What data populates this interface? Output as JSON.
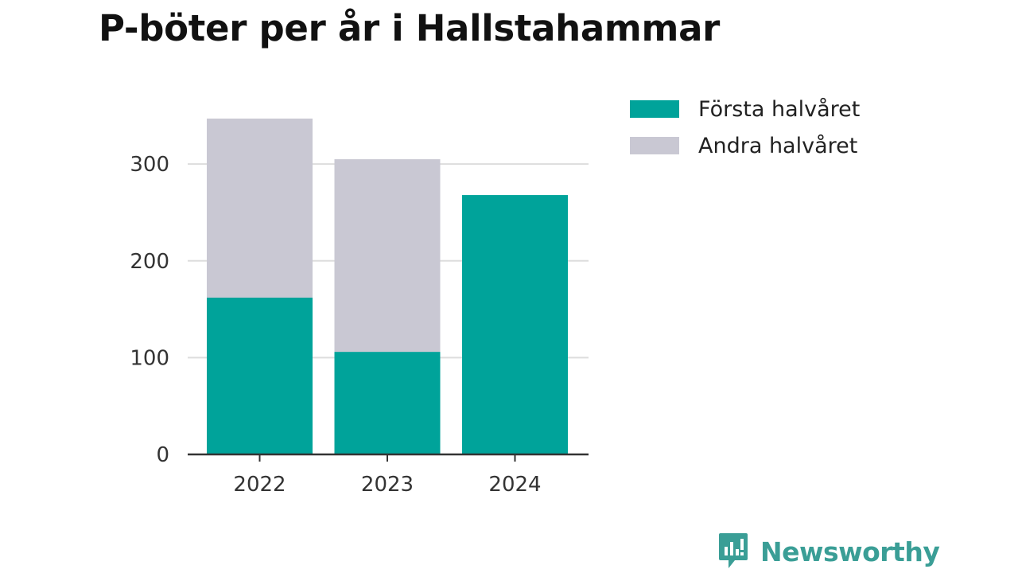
{
  "title": "P-böter per år i Hallstahammar",
  "colors": {
    "first_half": "#00a39a",
    "second_half": "#c9c8d3",
    "gridline": "#dddddd",
    "axis": "#333333",
    "brand": "#3a9e96"
  },
  "chart_data": {
    "type": "bar",
    "stacked": true,
    "title": "P-böter per år i Hallstahammar",
    "categories": [
      "2022",
      "2023",
      "2024"
    ],
    "series": [
      {
        "name": "Första halvåret",
        "color": "#00a39a",
        "values": [
          162,
          106,
          268
        ]
      },
      {
        "name": "Andra halvåret",
        "color": "#c9c8d3",
        "values": [
          185,
          199,
          0
        ]
      }
    ],
    "ylim": [
      0,
      347
    ],
    "yticks": [
      0,
      100,
      200,
      300
    ],
    "grid": true,
    "legend": "top-right",
    "xlabel": "",
    "ylabel": ""
  },
  "legend": {
    "items": [
      {
        "label": "Första halvåret",
        "color": "#00a39a"
      },
      {
        "label": "Andra halvåret",
        "color": "#c9c8d3"
      }
    ]
  },
  "brand": {
    "name": "Newsworthy",
    "icon": "newsworthy-logo-icon"
  }
}
